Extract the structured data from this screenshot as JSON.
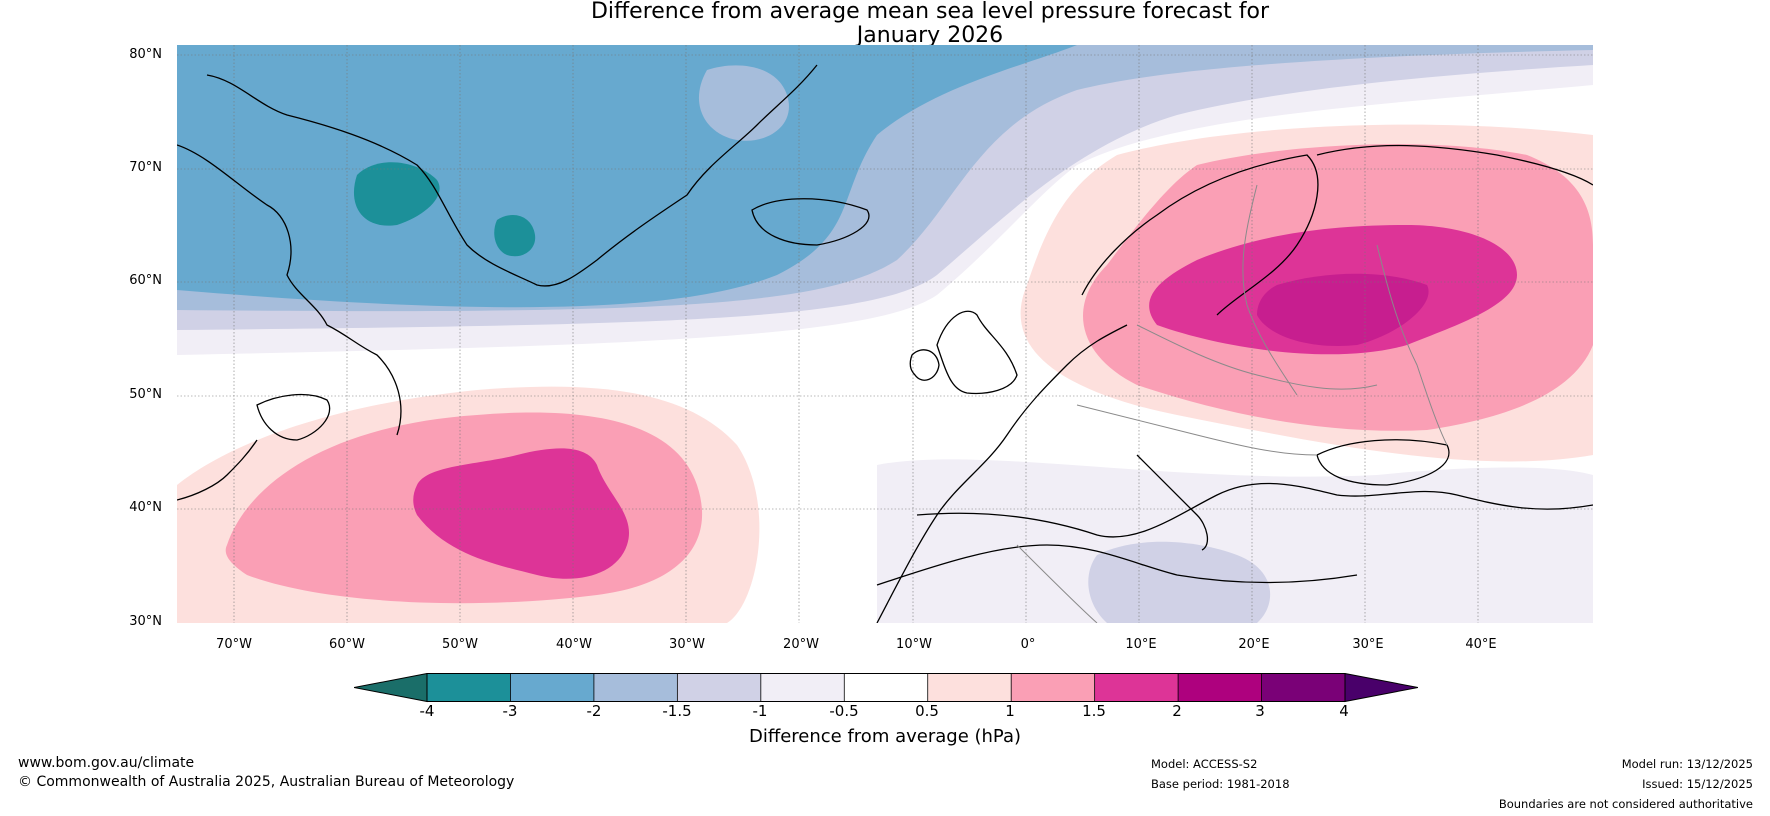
{
  "title": {
    "line1": "Difference from average mean sea level pressure forecast for",
    "line2": "January 2026"
  },
  "map": {
    "lat_labels": [
      "80°N",
      "70°N",
      "60°N",
      "50°N",
      "40°N",
      "30°N"
    ],
    "lon_labels": [
      "70°W",
      "60°W",
      "50°W",
      "40°W",
      "30°W",
      "20°W",
      "10°W",
      "0°",
      "10°E",
      "20°E",
      "30°E",
      "40°E"
    ],
    "features": {
      "low_center": "North Atlantic / Greenland",
      "high_center_1": "Central North Atlantic",
      "high_center_2": "Fennoscandia / Western Russia"
    }
  },
  "colorbar": {
    "ticks": [
      "-4",
      "-3",
      "-2",
      "-1.5",
      "-1",
      "-0.5",
      "0.5",
      "1",
      "1.5",
      "2",
      "3",
      "4"
    ],
    "colors": [
      "#1a6e69",
      "#1c9099",
      "#67a9cf",
      "#a6bddb",
      "#d0d1e6",
      "#f1eef6",
      "#ffffff",
      "#fde0dd",
      "#fa9fb5",
      "#dd3497",
      "#ae017e",
      "#7a0177",
      "#49006a"
    ],
    "label": "Difference from average (hPa)"
  },
  "footer": {
    "website": "www.bom.gov.au/climate",
    "copyright": "© Commonwealth of Australia 2025, Australian Bureau of Meteorology",
    "model": "Model: ACCESS-S2",
    "base_period": "Base period: 1981-2018",
    "model_run": "Model run: 13/12/2025",
    "issued": "Issued: 15/12/2025",
    "disclaimer": "Boundaries are not considered authoritative"
  }
}
